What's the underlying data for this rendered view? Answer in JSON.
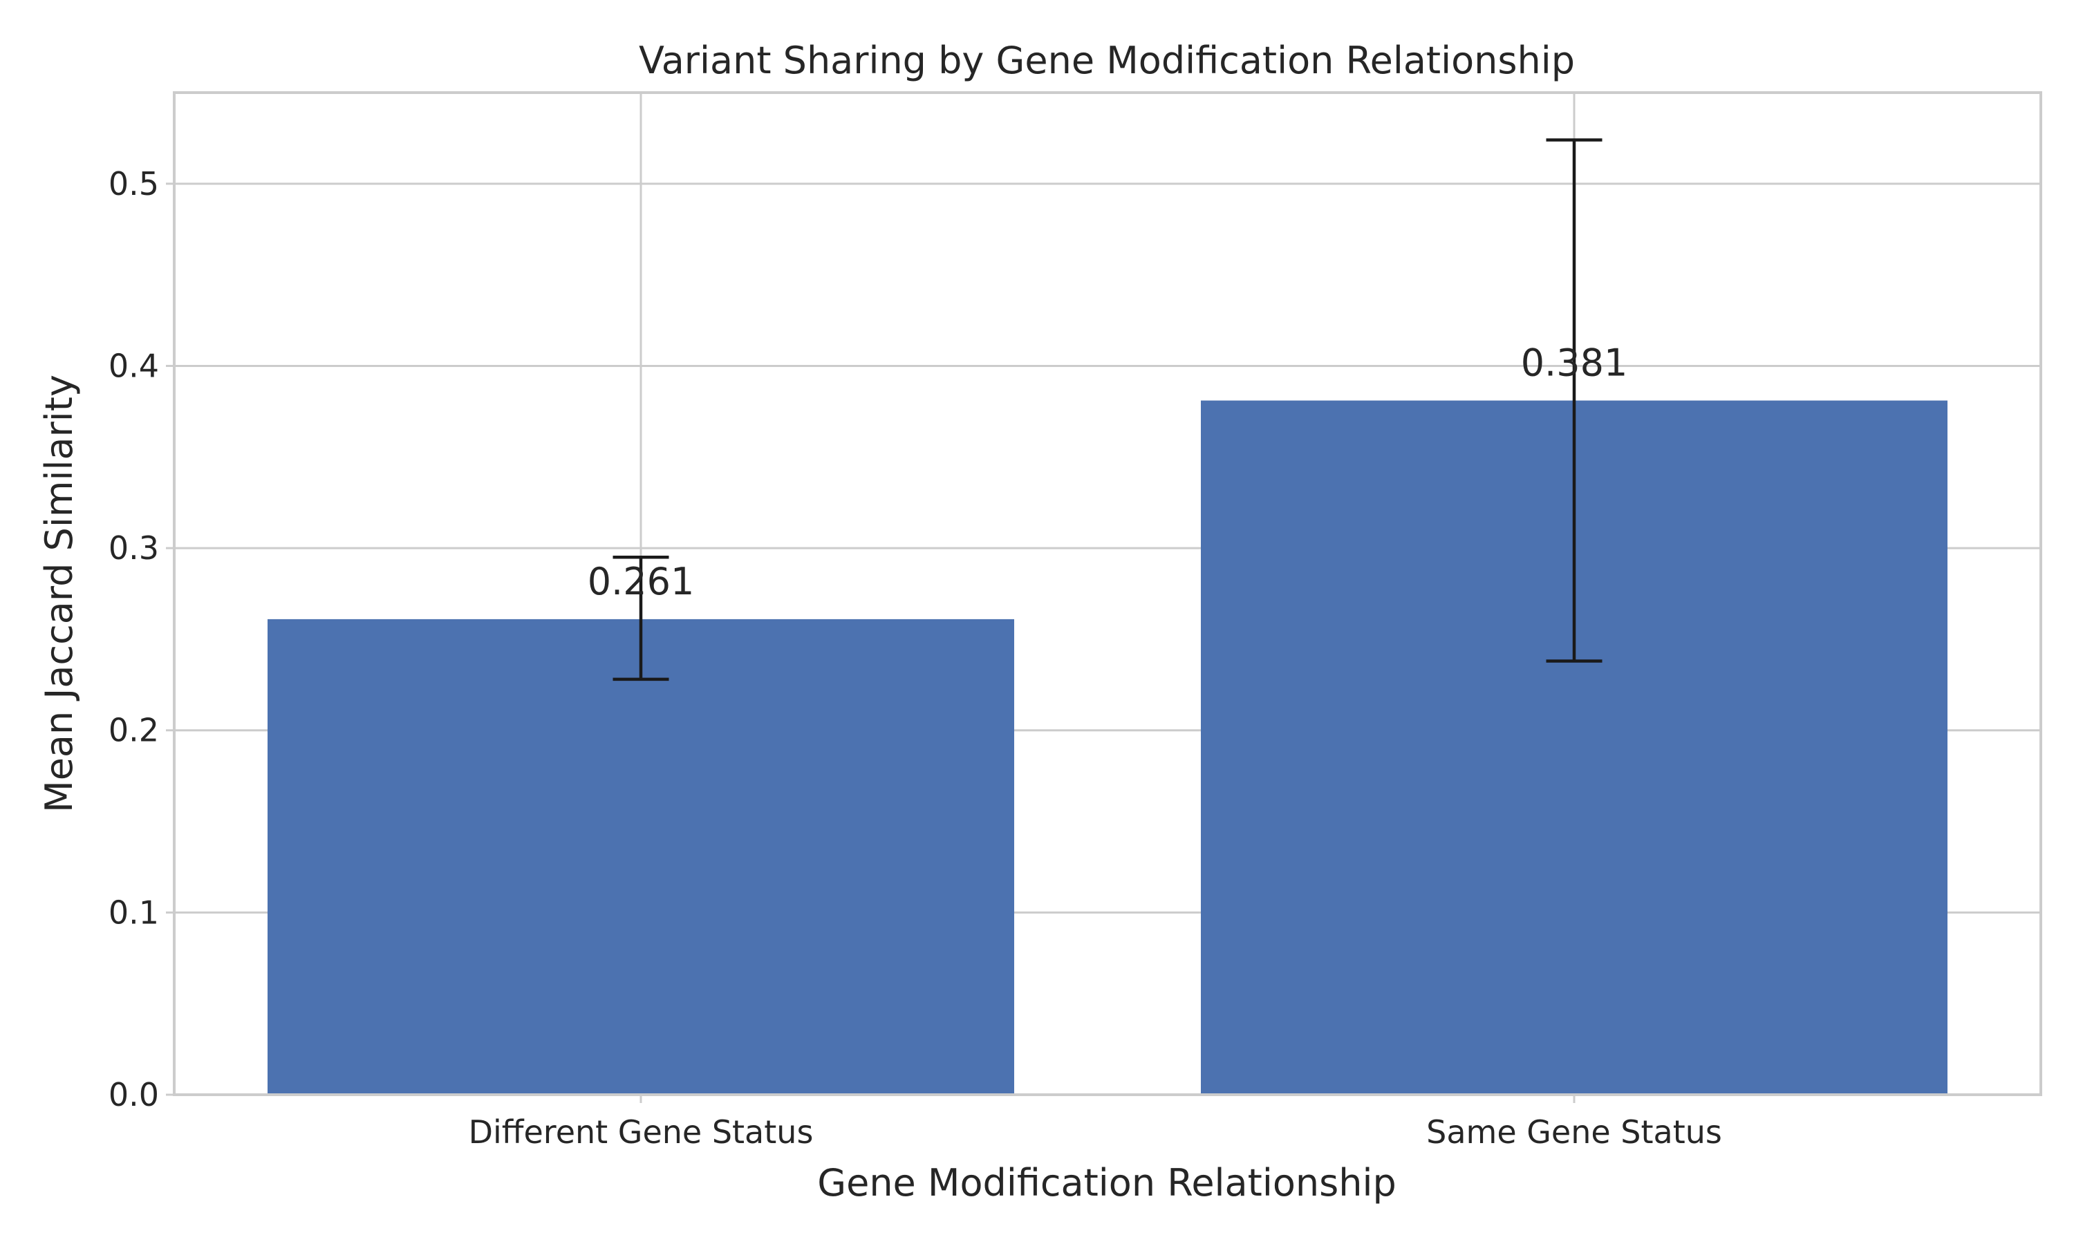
{
  "chart_data": {
    "type": "bar",
    "title": "Variant Sharing by Gene Modification Relationship",
    "xlabel": "Gene Modification Relationship",
    "ylabel": "Mean Jaccard Similarity",
    "categories": [
      "Different Gene Status",
      "Same Gene Status"
    ],
    "values": [
      0.261,
      0.381
    ],
    "value_labels": [
      "0.261",
      "0.381"
    ],
    "error_low": [
      0.228,
      0.238
    ],
    "error_high": [
      0.295,
      0.524
    ],
    "ylim": [
      0,
      0.55
    ],
    "yticks": [
      0.0,
      0.1,
      0.2,
      0.3,
      0.4,
      0.5
    ],
    "ytick_labels": [
      "0.0",
      "0.1",
      "0.2",
      "0.3",
      "0.4",
      "0.5"
    ],
    "grid": true,
    "colors": {
      "bar": "#4c72b0",
      "error_bar": "#1a1a1a",
      "grid": "#cccccc"
    }
  }
}
